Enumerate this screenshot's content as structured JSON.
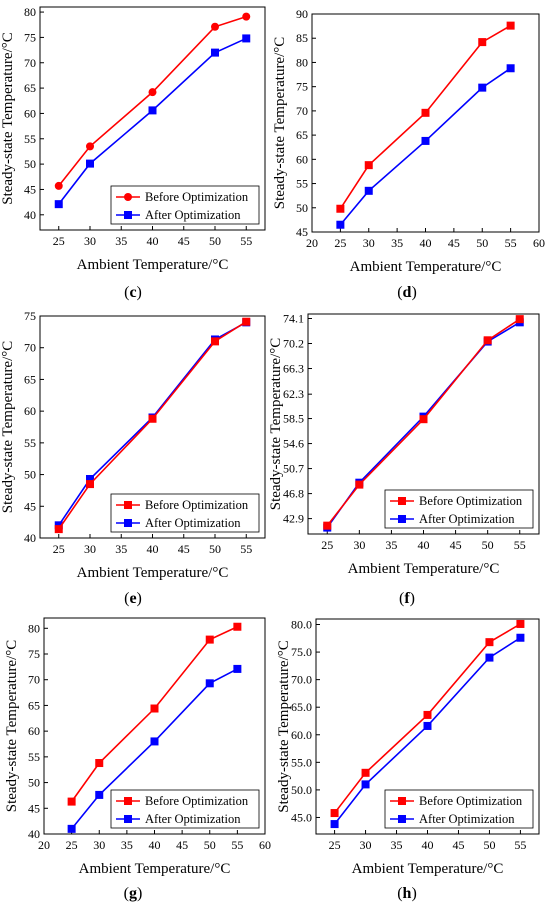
{
  "legend_labels": [
    "Before Optimization",
    "After Optimization"
  ],
  "colors": {
    "before": "#ff0000",
    "after": "#0000ff"
  },
  "chart_data": [
    {
      "panel": "c",
      "type": "line",
      "xlabel": "Ambient Temperature/°C",
      "ylabel": "Steady-state Temperature/°C",
      "x": [
        25,
        30,
        40,
        50,
        55
      ],
      "xlim": [
        22,
        58
      ],
      "ylim": [
        37,
        81
      ],
      "xticks": [
        25,
        30,
        35,
        40,
        45,
        50,
        55
      ],
      "yticks": [
        40,
        45,
        50,
        55,
        60,
        65,
        70,
        75,
        80
      ],
      "marker_before": "circle",
      "marker_after": "square",
      "legend_position": "bottom-right",
      "series": [
        {
          "name": "Before Optimization",
          "values": [
            45.7,
            53.5,
            64.2,
            77.1,
            79.1
          ]
        },
        {
          "name": "After Optimization",
          "values": [
            42.1,
            50.1,
            60.6,
            72.0,
            74.8
          ]
        }
      ]
    },
    {
      "panel": "d",
      "type": "line",
      "xlabel": "Ambient Temperature/°C",
      "ylabel": "Steady-state Temperature/°C",
      "x": [
        25,
        30,
        40,
        50,
        55
      ],
      "xlim": [
        20,
        60
      ],
      "ylim": [
        45,
        90
      ],
      "xticks": [
        20,
        25,
        30,
        35,
        40,
        45,
        50,
        55,
        60
      ],
      "yticks": [
        45,
        50,
        55,
        60,
        65,
        70,
        75,
        80,
        85,
        90
      ],
      "marker_before": "square",
      "marker_after": "square",
      "legend_position": "none",
      "series": [
        {
          "name": "Before Optimization",
          "values": [
            49.8,
            58.8,
            69.6,
            84.2,
            87.6
          ]
        },
        {
          "name": "After Optimization",
          "values": [
            46.5,
            53.5,
            63.8,
            74.8,
            78.8
          ]
        }
      ]
    },
    {
      "panel": "e",
      "type": "line",
      "xlabel": "Ambient Temperature/°C",
      "ylabel": "Steady-state Temperature/°C",
      "x": [
        25,
        30,
        40,
        50,
        55
      ],
      "xlim": [
        22,
        58
      ],
      "ylim": [
        40,
        75
      ],
      "xticks": [
        25,
        30,
        35,
        40,
        45,
        50,
        55
      ],
      "yticks": [
        40,
        45,
        50,
        55,
        60,
        65,
        70,
        75
      ],
      "marker_before": "square",
      "marker_after": "square",
      "legend_position": "bottom-right",
      "series": [
        {
          "name": "Before Optimization",
          "values": [
            41.4,
            48.5,
            58.8,
            71.0,
            74.1
          ]
        },
        {
          "name": "After Optimization",
          "values": [
            42.0,
            49.3,
            59.0,
            71.3,
            74.0
          ]
        }
      ]
    },
    {
      "panel": "f",
      "type": "line",
      "xlabel": "Ambient Temperature/°C",
      "ylabel": "Steady-state Temperature/°C",
      "x": [
        25,
        30,
        40,
        50,
        55
      ],
      "xlim": [
        22,
        58
      ],
      "ylim": [
        40.5,
        74.8
      ],
      "xticks": [
        25,
        30,
        35,
        40,
        45,
        50,
        55
      ],
      "yticks": [
        42.9,
        46.8,
        50.7,
        54.6,
        58.5,
        62.3,
        66.3,
        70.2,
        74.1
      ],
      "ytick_labels": [
        "42.9",
        "46.8",
        "50.7",
        "54.6",
        "58.5",
        "62.3",
        "66.3",
        "70.2",
        "74.1"
      ],
      "marker_before": "square",
      "marker_after": "square",
      "legend_position": "bottom-right",
      "series": [
        {
          "name": "Before Optimization",
          "values": [
            41.8,
            48.2,
            58.4,
            70.7,
            74.0
          ]
        },
        {
          "name": "After Optimization",
          "values": [
            41.5,
            48.5,
            58.8,
            70.5,
            73.5
          ]
        }
      ]
    },
    {
      "panel": "g",
      "type": "line",
      "xlabel": "Ambient Temperature/°C",
      "ylabel": "Steady-state Temperature/°C",
      "x": [
        25,
        30,
        40,
        50,
        55
      ],
      "xlim": [
        20,
        60
      ],
      "ylim": [
        40,
        82
      ],
      "xticks": [
        20,
        25,
        30,
        35,
        40,
        45,
        50,
        55,
        60
      ],
      "yticks": [
        40,
        45,
        50,
        55,
        60,
        65,
        70,
        75,
        80
      ],
      "marker_before": "square",
      "marker_after": "square",
      "legend_position": "bottom-right",
      "series": [
        {
          "name": "Before Optimization",
          "values": [
            46.3,
            53.8,
            64.4,
            77.8,
            80.3
          ]
        },
        {
          "name": "After Optimization",
          "values": [
            41.0,
            47.6,
            58.0,
            69.3,
            72.1
          ]
        }
      ]
    },
    {
      "panel": "h",
      "type": "line",
      "xlabel": "Ambient Temperature/°C",
      "ylabel": "Steady-state Temperature/°C",
      "x": [
        25,
        30,
        40,
        50,
        55
      ],
      "xlim": [
        22,
        58
      ],
      "ylim": [
        42,
        81
      ],
      "xticks": [
        25,
        30,
        35,
        40,
        45,
        50,
        55
      ],
      "yticks": [
        45,
        50,
        55,
        60,
        65,
        70,
        75,
        80
      ],
      "ytick_labels": [
        "45.0",
        "50.0",
        "55.0",
        "60.0",
        "65.0",
        "70.0",
        "75.0",
        "80.0"
      ],
      "marker_before": "square",
      "marker_after": "square",
      "legend_position": "bottom-right",
      "series": [
        {
          "name": "Before Optimization",
          "values": [
            45.8,
            53.1,
            63.6,
            76.8,
            80.1
          ]
        },
        {
          "name": "After Optimization",
          "values": [
            43.8,
            51.0,
            61.6,
            74.0,
            77.6
          ]
        }
      ]
    }
  ]
}
